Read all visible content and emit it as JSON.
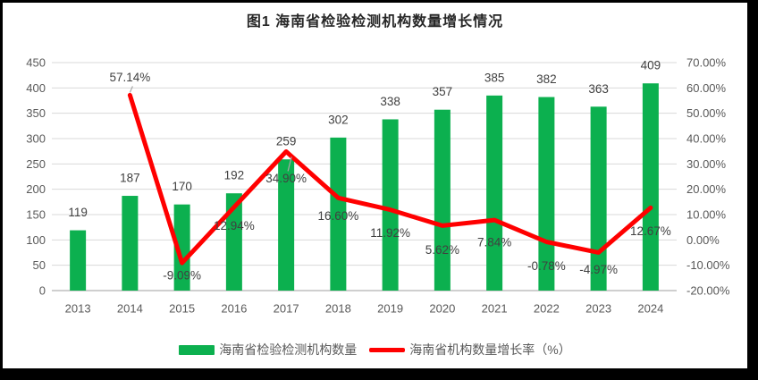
{
  "figure": {
    "title": "图1 海南省检验检测机构数量增长情况"
  },
  "chart_data": {
    "type": "combo-bar-line",
    "title": "图1 海南省检验检测机构数量增长情况",
    "categories": [
      "2013",
      "2014",
      "2015",
      "2016",
      "2017",
      "2018",
      "2019",
      "2020",
      "2021",
      "2022",
      "2023",
      "2024"
    ],
    "series": [
      {
        "name": "海南省检验检测机构数量",
        "type": "bar",
        "axis": "left",
        "color": "#0CB04F",
        "values": [
          119,
          187,
          170,
          192,
          259,
          302,
          338,
          357,
          385,
          382,
          363,
          409
        ],
        "value_labels": [
          "119",
          "187",
          "170",
          "192",
          "259",
          "302",
          "338",
          "357",
          "385",
          "382",
          "363",
          "409"
        ]
      },
      {
        "name": "海南省机构数量增长率（%）",
        "type": "line",
        "axis": "right",
        "color": "#FF0000",
        "values": [
          null,
          57.14,
          -9.09,
          12.94,
          34.9,
          16.6,
          11.92,
          5.62,
          7.84,
          -0.78,
          -4.97,
          12.67
        ],
        "point_labels": [
          null,
          "57.14%",
          "-9.09%",
          "12.94%",
          "34.90%",
          "16.60%",
          "11.92%",
          "5.62%",
          "7.84%",
          "-0.78%",
          "-4.97%",
          "12.67%"
        ]
      }
    ],
    "left_axis": {
      "min": 0,
      "max": 450,
      "step": 50,
      "tick_labels_top_to_bottom": [
        "450",
        "400",
        "350",
        "300",
        "250",
        "200",
        "150",
        "100",
        "50",
        "0"
      ]
    },
    "right_axis": {
      "min": -20,
      "max": 70,
      "step": 10,
      "tick_labels_top_to_bottom": [
        "70.00%",
        "60.00%",
        "50.00%",
        "40.00%",
        "30.00%",
        "20.00%",
        "10.00%",
        "0.00%",
        "-10.00%",
        "-20.00%"
      ]
    },
    "grid": true,
    "legend_position": "bottom"
  },
  "colors": {
    "bar": "#0CB04F",
    "line": "#FF0000",
    "grid": "#D9D9D9",
    "axis_line": "#BFBFBF",
    "axis_text": "#595959",
    "data_label": "#404040",
    "title_text": "#262626",
    "leader_line": "#A6A6A6",
    "background": "#FFFFFF",
    "frame": "#000000"
  }
}
